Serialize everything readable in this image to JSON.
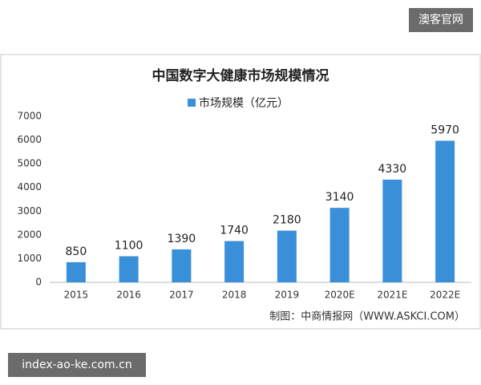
{
  "chart_data": {
    "type": "bar",
    "title": "中国数字大健康市场规模情况",
    "series": [
      {
        "name": "市场规模（亿元）",
        "color": "#3a8fd9",
        "values": [
          850,
          1100,
          1390,
          1740,
          2180,
          3140,
          4330,
          5970
        ]
      }
    ],
    "categories": [
      "2015",
      "2016",
      "2017",
      "2018",
      "2019",
      "2020E",
      "2021E",
      "2022E"
    ],
    "ylim": [
      0,
      7000
    ],
    "yticks": [
      0,
      1000,
      2000,
      3000,
      4000,
      5000,
      6000,
      7000
    ],
    "grid": false,
    "source": "制图：中商情报网（WWW.ASKCI.COM）"
  },
  "badges": {
    "top_right": "澳客官网",
    "bottom_left": "index-ao-ke.com.cn"
  }
}
